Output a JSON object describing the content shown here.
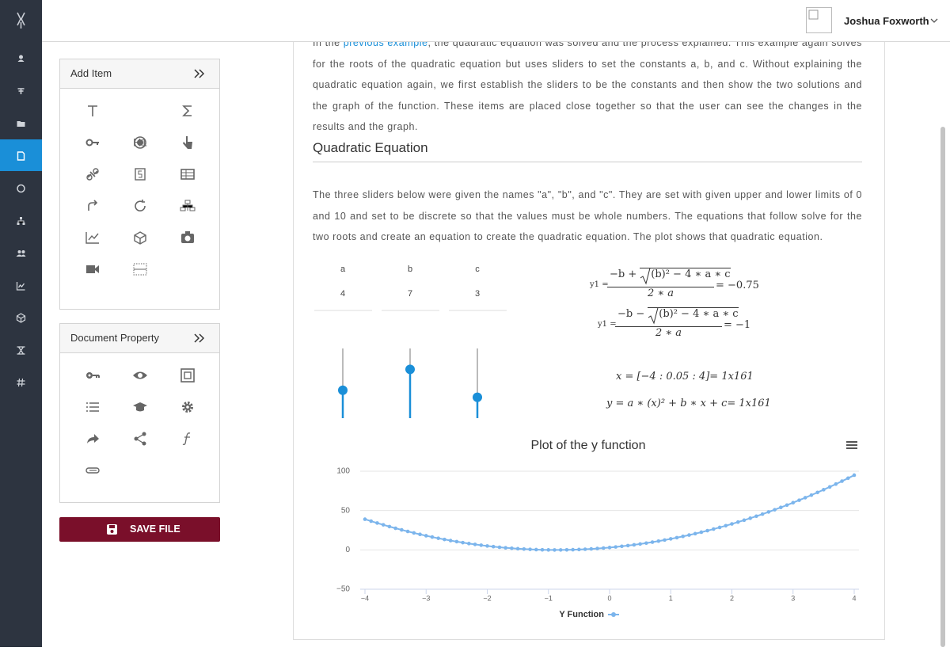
{
  "header": {
    "user_name": "Joshua Foxworth"
  },
  "add_item": {
    "title": "Add Item",
    "h1_label": "H1"
  },
  "document_property": {
    "title": "Document Property"
  },
  "save_button": "SAVE FILE",
  "document": {
    "p1_before": "In the ",
    "p1_link": "previous example",
    "p1_after": ", the quadratic equation was solved and the process explained. This example again solves for the roots of the quadratic equation but uses sliders to set the constants a, b, and c. Without explaining the quadratic equation again, we first establish the sliders to be the constants and then show the two solutions and the graph of the function. These items are placed close together so that the user can see the changes in the results and the graph.",
    "heading": "Quadratic Equation",
    "p2": "The three sliders below were given the names \"a\", \"b\", and \"c\". They are set with given upper and lower limits of 0 and 10 and set to be discrete so that the values must be whole numbers. The equations that follow solve for the two roots and create an equation to create the quadratic equation. The plot shows that quadratic equation."
  },
  "sliders": {
    "range": [
      0,
      10
    ],
    "items": [
      {
        "name": "a",
        "value": 4
      },
      {
        "name": "b",
        "value": 7
      },
      {
        "name": "c",
        "value": 3
      }
    ]
  },
  "equations": {
    "roots": [
      {
        "lhs": "y1 =",
        "prefix": "−b +",
        "radicand": "(b)² − 4 ∗ a ∗ c",
        "denominator": "2 ∗ a",
        "result": "= −0.75"
      },
      {
        "lhs": "y1 =",
        "prefix": "−b −",
        "radicand": "(b)² − 4 ∗ a ∗ c",
        "denominator": "2 ∗ a",
        "result": "= −1"
      }
    ],
    "x_def": "x = [−4 : 0.05 : 4]= 1x161",
    "y_def": "y = a ∗ (x)² + b ∗ x + c= 1x161"
  },
  "chart_data": {
    "type": "line",
    "title": "Plot of the y function",
    "x": [
      -4,
      -3.9,
      -3.8,
      -3.7,
      -3.6,
      -3.5,
      -3.4,
      -3.3,
      -3.2,
      -3.1,
      -3,
      -2.9,
      -2.8,
      -2.7,
      -2.6,
      -2.5,
      -2.4,
      -2.3,
      -2.2,
      -2.1,
      -2,
      -1.9,
      -1.8,
      -1.7,
      -1.6,
      -1.5,
      -1.4,
      -1.3,
      -1.2,
      -1.1,
      -1,
      -0.9,
      -0.8,
      -0.7,
      -0.6,
      -0.5,
      -0.4,
      -0.3,
      -0.2,
      -0.1,
      0,
      0.1,
      0.2,
      0.3,
      0.4,
      0.5,
      0.6,
      0.7,
      0.8,
      0.9,
      1,
      1.1,
      1.2,
      1.3,
      1.4,
      1.5,
      1.6,
      1.7,
      1.8,
      1.9,
      2,
      2.1,
      2.2,
      2.3,
      2.4,
      2.5,
      2.6,
      2.7,
      2.8,
      2.9,
      3,
      3.1,
      3.2,
      3.3,
      3.4,
      3.5,
      3.6,
      3.7,
      3.8,
      3.9,
      4
    ],
    "series": [
      {
        "name": "Y Function",
        "color": "#7cb5ec",
        "values": [
          39,
          36.54,
          34.16,
          31.86,
          29.64,
          27.5,
          25.44,
          23.46,
          21.56,
          19.74,
          18,
          16.34,
          14.76,
          13.26,
          11.84,
          10.5,
          9.24,
          8.06,
          6.96,
          5.94,
          5,
          4.14,
          3.36,
          2.66,
          2.04,
          1.5,
          1.04,
          0.66,
          0.36,
          0.14,
          0,
          -0.06,
          -0.04,
          0.06,
          0.24,
          0.5,
          0.84,
          1.26,
          1.76,
          2.34,
          3,
          3.74,
          4.56,
          5.46,
          6.44,
          7.5,
          8.64,
          9.86,
          11.16,
          12.54,
          14,
          15.54,
          17.16,
          18.86,
          20.64,
          22.5,
          24.44,
          26.46,
          28.56,
          30.74,
          33,
          35.34,
          37.76,
          40.26,
          42.84,
          45.5,
          48.24,
          51.06,
          53.96,
          56.94,
          60,
          63.14,
          66.36,
          69.66,
          73.04,
          76.5,
          80.04,
          83.66,
          87.36,
          91.14,
          95
        ]
      }
    ],
    "xlim": [
      -4,
      4
    ],
    "xticks": [
      {
        "value": -4,
        "label": "−4"
      },
      {
        "value": -3,
        "label": "−3"
      },
      {
        "value": -2,
        "label": "−2"
      },
      {
        "value": -1,
        "label": "−1"
      },
      0,
      1,
      2,
      3,
      4
    ],
    "ylim": [
      -50,
      100
    ],
    "yticks": [
      {
        "value": -50,
        "label": "−50"
      },
      0,
      50,
      100
    ],
    "grid": true
  }
}
